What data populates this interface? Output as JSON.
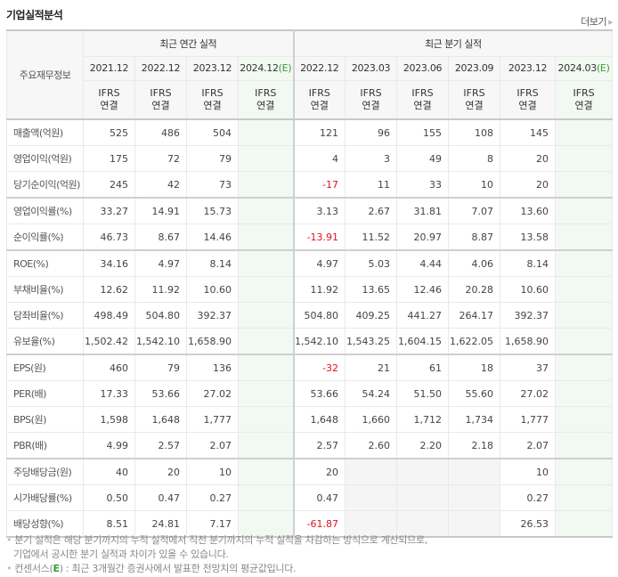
{
  "header": {
    "title": "기업실적분석",
    "more_label": "더보기",
    "more_icon": "triangle-right-icon"
  },
  "table": {
    "row_header_label": "주요재무정보",
    "groups": [
      {
        "label": "최근 연간 실적",
        "colspan": 4
      },
      {
        "label": "최근 분기 실적",
        "colspan": 6
      }
    ],
    "periods": [
      {
        "label": "2021.12",
        "est": ""
      },
      {
        "label": "2022.12",
        "est": ""
      },
      {
        "label": "2023.12",
        "est": ""
      },
      {
        "label": "2024.12",
        "est": "(E)"
      },
      {
        "label": "2022.12",
        "est": ""
      },
      {
        "label": "2023.03",
        "est": ""
      },
      {
        "label": "2023.06",
        "est": ""
      },
      {
        "label": "2023.09",
        "est": ""
      },
      {
        "label": "2023.12",
        "est": ""
      },
      {
        "label": "2024.03",
        "est": "(E)"
      }
    ],
    "standard": {
      "line1": "IFRS",
      "line2": "연결"
    },
    "rows": [
      {
        "label": "매출액(억원)",
        "values": [
          "525",
          "486",
          "504",
          "",
          "121",
          "96",
          "155",
          "108",
          "145",
          ""
        ]
      },
      {
        "label": "영업이익(억원)",
        "values": [
          "175",
          "72",
          "79",
          "",
          "4",
          "3",
          "49",
          "8",
          "20",
          ""
        ]
      },
      {
        "label": "당기순이익(억원)",
        "values": [
          "245",
          "42",
          "73",
          "",
          "-17",
          "11",
          "33",
          "10",
          "20",
          ""
        ]
      },
      {
        "label": "영업이익률(%)",
        "values": [
          "33.27",
          "14.91",
          "15.73",
          "",
          "3.13",
          "2.67",
          "31.81",
          "7.07",
          "13.60",
          ""
        ]
      },
      {
        "label": "순이익률(%)",
        "values": [
          "46.73",
          "8.67",
          "14.46",
          "",
          "-13.91",
          "11.52",
          "20.97",
          "8.87",
          "13.58",
          ""
        ]
      },
      {
        "label": "ROE(%)",
        "values": [
          "34.16",
          "4.97",
          "8.14",
          "",
          "4.97",
          "5.03",
          "4.44",
          "4.06",
          "8.14",
          ""
        ]
      },
      {
        "label": "부채비율(%)",
        "values": [
          "12.62",
          "11.92",
          "10.60",
          "",
          "11.92",
          "13.65",
          "12.46",
          "20.28",
          "10.60",
          ""
        ]
      },
      {
        "label": "당좌비율(%)",
        "values": [
          "498.49",
          "504.80",
          "392.37",
          "",
          "504.80",
          "409.25",
          "441.27",
          "264.17",
          "392.37",
          ""
        ]
      },
      {
        "label": "유보율(%)",
        "values": [
          "1,502.42",
          "1,542.10",
          "1,658.90",
          "",
          "1,542.10",
          "1,543.25",
          "1,604.15",
          "1,622.05",
          "1,658.90",
          ""
        ]
      },
      {
        "label": "EPS(원)",
        "values": [
          "460",
          "79",
          "136",
          "",
          "-32",
          "21",
          "61",
          "18",
          "37",
          ""
        ]
      },
      {
        "label": "PER(배)",
        "values": [
          "17.33",
          "53.66",
          "27.02",
          "",
          "53.66",
          "54.24",
          "51.50",
          "55.60",
          "27.02",
          ""
        ]
      },
      {
        "label": "BPS(원)",
        "values": [
          "1,598",
          "1,648",
          "1,777",
          "",
          "1,648",
          "1,660",
          "1,712",
          "1,734",
          "1,777",
          ""
        ]
      },
      {
        "label": "PBR(배)",
        "values": [
          "4.99",
          "2.57",
          "2.07",
          "",
          "2.57",
          "2.60",
          "2.20",
          "2.18",
          "2.07",
          ""
        ]
      },
      {
        "label": "주당배당금(원)",
        "values": [
          "40",
          "20",
          "10",
          "",
          "20",
          "",
          "",
          "",
          "10",
          ""
        ]
      },
      {
        "label": "시가배당률(%)",
        "values": [
          "0.50",
          "0.47",
          "0.27",
          "",
          "0.47",
          "",
          "",
          "",
          "0.27",
          ""
        ]
      },
      {
        "label": "배당성향(%)",
        "values": [
          "8.51",
          "24.81",
          "7.17",
          "",
          "-61.87",
          "",
          "",
          "",
          "26.53",
          ""
        ]
      }
    ]
  },
  "notes": {
    "line1": "분기 실적은 해당 분기까지의 누적 실적에서 직전 분기까지의 누적 실적을 차감하는 방식으로 계산되므로,",
    "line1b": "기업에서 공시한 분기 실적과 차이가 있을 수 있습니다.",
    "line2_prefix": "컨센서스(",
    "line2_e": "E",
    "line2_suffix": ") : 최근 3개월간 증권사에서 발표한 전망치의 평균값입니다."
  },
  "colors": {
    "ifrs": "#e05a1c",
    "negative": "#e0121e",
    "estimate_bg": "#f2f8f2",
    "estimate_mark": "#3a9a3a"
  }
}
